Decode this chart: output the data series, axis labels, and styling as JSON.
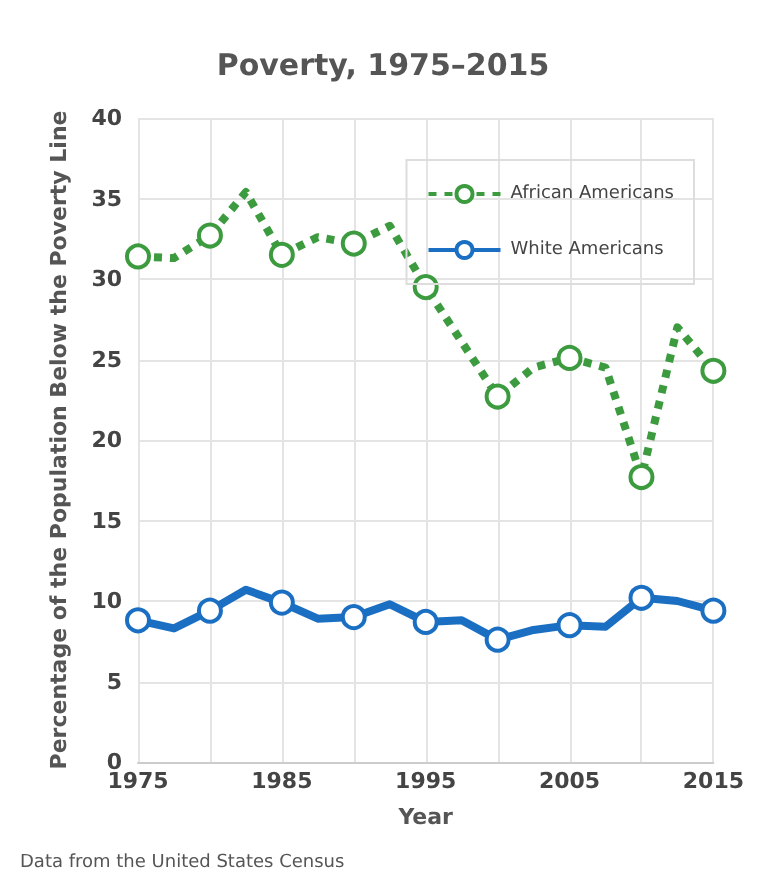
{
  "chart_data": {
    "type": "line",
    "title": "Poverty, 1975–2015",
    "xlabel": "Year",
    "ylabel": "Percentage of the Population Below the Poverty Line",
    "annotations": [
      "Data from the United States Census"
    ],
    "x": [
      1975,
      1977.5,
      1980,
      1982.5,
      1985,
      1987.5,
      1990,
      1992.5,
      1995,
      1997.5,
      2000,
      2002.5,
      2005,
      2007.5,
      2010,
      2012.5,
      2015
    ],
    "series": [
      {
        "name": "African Americans",
        "color": "#3d9b3f",
        "line_style": "dotted",
        "values": [
          31.4,
          31.3,
          32.7,
          35.4,
          31.5,
          32.6,
          32.2,
          33.3,
          29.5,
          26.1,
          22.7,
          24.5,
          25.1,
          24.5,
          17.7,
          27.0,
          24.3
        ]
      },
      {
        "name": "White Americans",
        "color": "#1b6fc2",
        "line_style": "solid",
        "values": [
          8.8,
          8.3,
          9.4,
          10.7,
          9.9,
          8.9,
          9.0,
          9.8,
          8.7,
          8.8,
          7.6,
          8.2,
          8.5,
          8.4,
          10.2,
          10.0,
          9.4
        ]
      }
    ],
    "xlim": [
      1975,
      2015
    ],
    "xticks": [
      1975,
      {
        "value": 1980,
        "label": null
      },
      1985,
      {
        "value": 1990,
        "label": null
      },
      1995,
      {
        "value": 2000,
        "label": null
      },
      2005,
      {
        "value": 2010,
        "label": null
      },
      2015
    ],
    "ylim": [
      0,
      40
    ],
    "yticks": [
      0,
      5,
      10,
      15,
      20,
      25,
      30,
      35,
      40
    ],
    "grid": true,
    "legend": "top right",
    "marker": "circle"
  }
}
